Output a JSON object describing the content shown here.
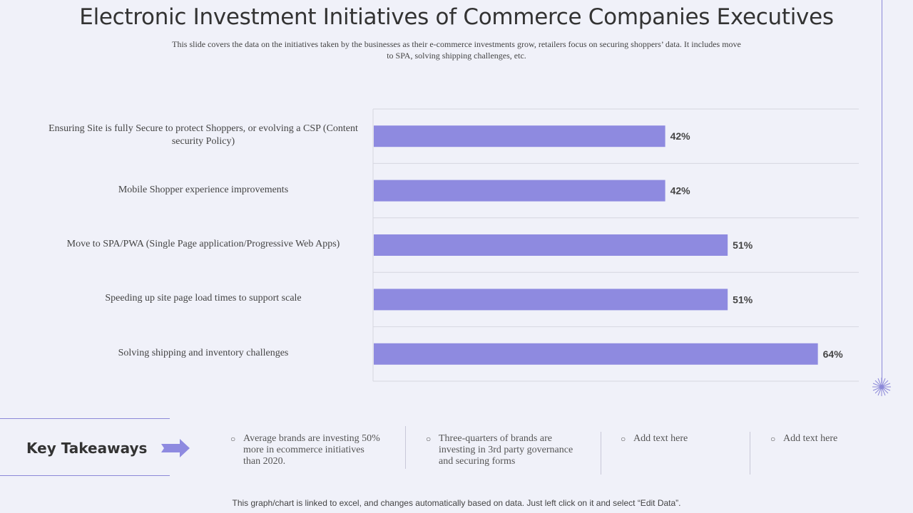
{
  "title": "Electronic  Investment Initiatives of Commerce Companies Executives",
  "subtitle": "This slide covers the data on the initiatives  taken by the businesses  as their e-commerce investments grow, retailers focus on securing shoppers’ data. It includes move to SPA, solving shipping challenges, etc.",
  "colors": {
    "bar": "#8e8ae0",
    "accent": "#8b88d8"
  },
  "chart_data": {
    "type": "bar",
    "orientation": "horizontal",
    "categories": [
      "Ensuring Site is fully Secure to protect Shoppers, or evolving a CSP (Content security Policy)",
      "Mobile Shopper experience improvements",
      "Move to SPA/PWA (Single Page application/Progressive Web Apps)",
      "Speeding up site page load times to support scale",
      "Solving shipping and inventory challenges"
    ],
    "values": [
      42,
      42,
      51,
      51,
      64
    ],
    "data_labels": [
      "42%",
      "42%",
      "51%",
      "51%",
      "64%"
    ],
    "xlim": [
      0,
      70
    ],
    "grid": true,
    "legend": "none"
  },
  "key_takeaways": {
    "label": "Key Takeaways",
    "items": [
      "Average brands are investing 50% more in ecommerce initiatives   than 2020.",
      "Three-quarters of brands are investing  in  3rd party governance and securing forms",
      "Add text here",
      "Add text here"
    ]
  },
  "footer": "This graph/chart is linked to excel, and changes automatically based on data. Just left click on it and select “Edit Data”."
}
